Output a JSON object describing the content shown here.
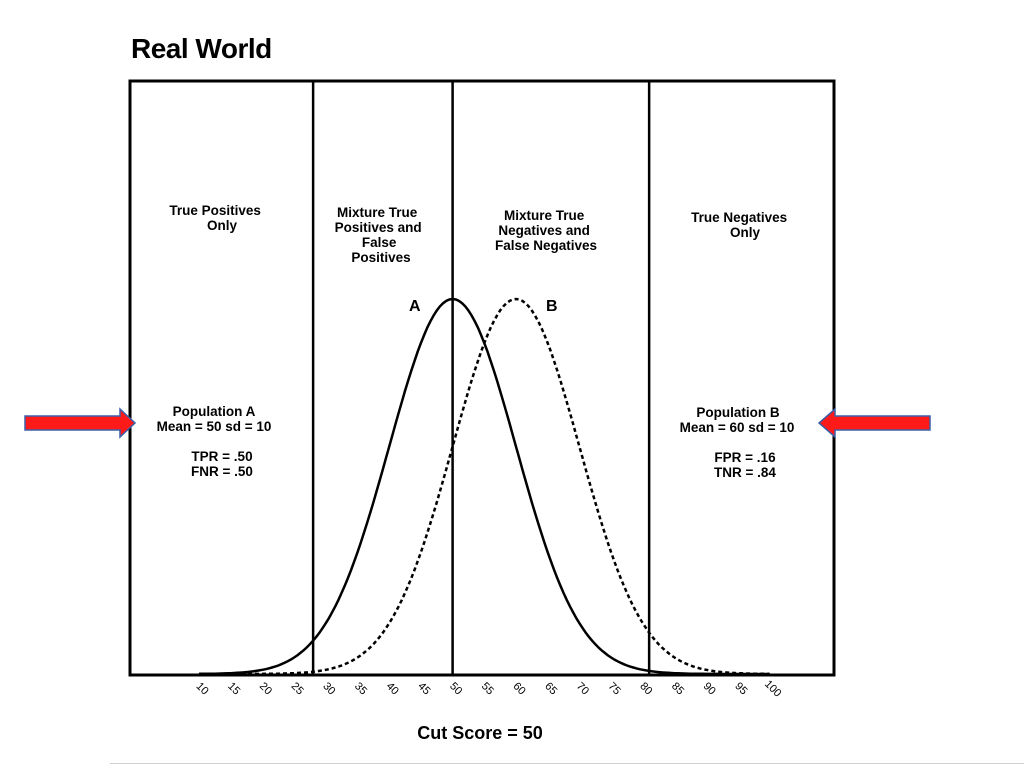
{
  "slide": {
    "title": "Real World"
  },
  "colors": {
    "arrow": "#ff1a1a",
    "arrow_outline": "#3b5ea8",
    "line": "#000000"
  },
  "regions": [
    {
      "lines": [
        "True Positives",
        "Only"
      ]
    },
    {
      "lines": [
        "Mixture True",
        "Positives and",
        "False",
        "Positives"
      ]
    },
    {
      "lines": [
        "Mixture True",
        "Negatives and",
        "False Negatives"
      ]
    },
    {
      "lines": [
        "True Negatives",
        "Only"
      ]
    }
  ],
  "population_a": {
    "title": "Population A",
    "stats": "Mean = 50  sd = 10",
    "tpr": "TPR = .50",
    "fnr": "FNR = .50"
  },
  "population_b": {
    "title": "Population B",
    "stats": "Mean = 60  sd = 10",
    "fpr": "FPR = .16",
    "tnr": "TNR = .84"
  },
  "chart_data": {
    "type": "line",
    "xlabel": "Cut Score = 50",
    "x_ticks": [
      "10",
      "15",
      "20",
      "25",
      "30",
      "35",
      "40",
      "45",
      "50",
      "55",
      "60",
      "65",
      "70",
      "75",
      "80",
      "85",
      "90",
      "95",
      "100"
    ],
    "xlim": [
      0,
      110
    ],
    "cut_score": 50,
    "region_boundaries": [
      28,
      50,
      81
    ],
    "series": [
      {
        "name": "A",
        "distribution": "normal",
        "mean": 50,
        "sd": 10,
        "style": "solid"
      },
      {
        "name": "B",
        "distribution": "normal",
        "mean": 60,
        "sd": 10,
        "style": "dotted"
      }
    ]
  }
}
